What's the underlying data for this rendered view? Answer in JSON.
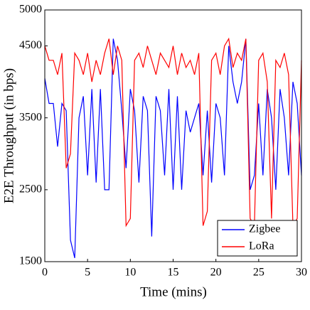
{
  "chart_data": {
    "type": "line",
    "x_label": "Time (mins)",
    "y_label": "E2E Throughput (in bps)",
    "x": [
      0,
      0.5,
      1,
      1.5,
      2,
      2.5,
      3,
      3.5,
      4,
      4.5,
      5,
      5.5,
      6,
      6.5,
      7,
      7.5,
      8,
      8.5,
      9,
      9.5,
      10,
      10.5,
      11,
      11.5,
      12,
      12.5,
      13,
      13.5,
      14,
      14.5,
      15,
      15.5,
      16,
      16.5,
      17,
      17.5,
      18,
      18.5,
      19,
      19.5,
      20,
      20.5,
      21,
      21.5,
      22,
      22.5,
      23,
      23.5,
      24,
      24.5,
      25,
      25.5,
      26,
      26.5,
      27,
      27.5,
      28,
      28.5,
      29,
      29.5,
      30
    ],
    "series": [
      {
        "name": "Zigbee",
        "color": "#0000ff",
        "values": [
          4050,
          3700,
          3700,
          3100,
          3700,
          3600,
          1800,
          1550,
          3500,
          3800,
          2700,
          3900,
          2600,
          3900,
          2500,
          2500,
          4600,
          4300,
          3600,
          2800,
          3900,
          3600,
          2600,
          3800,
          3600,
          1850,
          3800,
          3600,
          2700,
          3900,
          2500,
          3800,
          2500,
          3600,
          3300,
          3500,
          3700,
          2700,
          3600,
          2600,
          3700,
          3500,
          2700,
          4500,
          4000,
          3700,
          4000,
          4600,
          2500,
          2700,
          3700,
          2700,
          3900,
          3500,
          2500,
          3900,
          3500,
          2700,
          4000,
          3700,
          2700
        ]
      },
      {
        "name": "LoRa",
        "color": "#ff0000",
        "values": [
          4500,
          4300,
          4300,
          4100,
          4400,
          2800,
          3000,
          4400,
          4300,
          4100,
          4400,
          4000,
          4300,
          4100,
          4400,
          4600,
          4100,
          4500,
          4300,
          2000,
          2100,
          4300,
          4400,
          4200,
          4500,
          4300,
          4100,
          4400,
          4300,
          4200,
          4500,
          4100,
          4400,
          4200,
          4300,
          4100,
          4400,
          2000,
          2200,
          4300,
          4400,
          4100,
          4500,
          4600,
          4200,
          4400,
          4300,
          4600,
          2100,
          2000,
          4300,
          4400,
          4000,
          2100,
          4300,
          4200,
          4400,
          4100,
          2000,
          2100,
          4300
        ]
      }
    ],
    "xlim": [
      0,
      30
    ],
    "xticks": [
      0,
      5,
      10,
      15,
      20,
      25,
      30
    ],
    "ylim": [
      1500,
      5000
    ],
    "yticks": [
      1500,
      2500,
      3500,
      4500,
      5000
    ],
    "legend": "lower right"
  }
}
